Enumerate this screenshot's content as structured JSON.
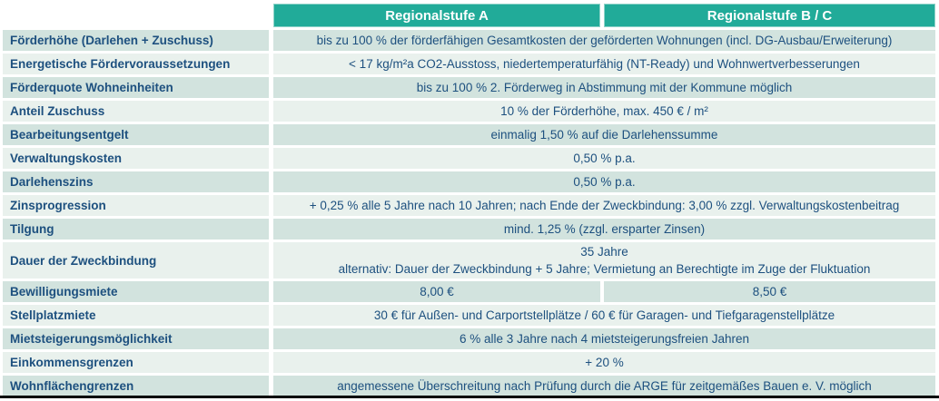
{
  "header": {
    "col_a": "Regionalstufe A",
    "col_b": "Regionalstufe B / C"
  },
  "colors": {
    "header_bg": "#21AB99",
    "header_text": "#FFFFFF",
    "row_dark": "#D2E3DE",
    "row_light": "#E9F1ED",
    "text": "#1D507F",
    "bottom_bar": "#000000"
  },
  "table": {
    "rows": [
      {
        "label": "Förderhöhe (Darlehen + Zuschuss)",
        "value": "bis zu 100 % der förderfähigen Gesamtkosten der geförderten Wohnungen (incl. DG-Ausbau/Erweiterung)"
      },
      {
        "label": "Energetische Fördervoraussetzungen",
        "value": "< 17 kg/m²a CO2-Ausstoss, niedertemperaturfähig (NT-Ready) und Wohnwertverbesserungen"
      },
      {
        "label": "Förderquote Wohneinheiten",
        "value": "bis zu 100 % 2. Förderweg in Abstimmung mit der Kommune möglich"
      },
      {
        "label": "Anteil Zuschuss",
        "value": "10 % der Förderhöhe, max. 450 € / m²"
      },
      {
        "label": "Bearbeitungsentgelt",
        "value": "einmalig 1,50 % auf die Darlehenssumme"
      },
      {
        "label": "Verwaltungskosten",
        "value": "0,50 % p.a."
      },
      {
        "label": "Darlehenszins",
        "value": "0,50 % p.a."
      },
      {
        "label": "Zinsprogression",
        "value": "+ 0,25 % alle 5 Jahre nach 10 Jahren; nach Ende der Zweckbindung: 3,00 % zzgl. Verwaltungskostenbeitrag"
      },
      {
        "label": "Tilgung",
        "value": "mind. 1,25 % (zzgl. ersparter Zinsen)"
      },
      {
        "label": "Dauer der Zweckbindung",
        "value_line1": "35 Jahre",
        "value_line2": "alternativ: Dauer der Zweckbindung + 5 Jahre; Vermietung an Berechtigte im Zuge der Fluktuation"
      },
      {
        "label": "Bewilligungsmiete",
        "value_a": "8,00 €",
        "value_b": "8,50 €"
      },
      {
        "label": "Stellplatzmiete",
        "value": "30 € für Außen- und Carportstellplätze  /  60 € für Garagen- und Tiefgaragenstellplätze"
      },
      {
        "label": "Mietsteigerungsmöglichkeit",
        "value": "6 % alle 3 Jahre nach 4 mietsteigerungsfreien Jahren"
      },
      {
        "label": "Einkommensgrenzen",
        "value": "+ 20 %"
      },
      {
        "label": "Wohnflächengrenzen",
        "value": "angemessene Überschreitung nach Prüfung durch die ARGE für zeitgemäßes Bauen e. V. möglich"
      }
    ]
  }
}
